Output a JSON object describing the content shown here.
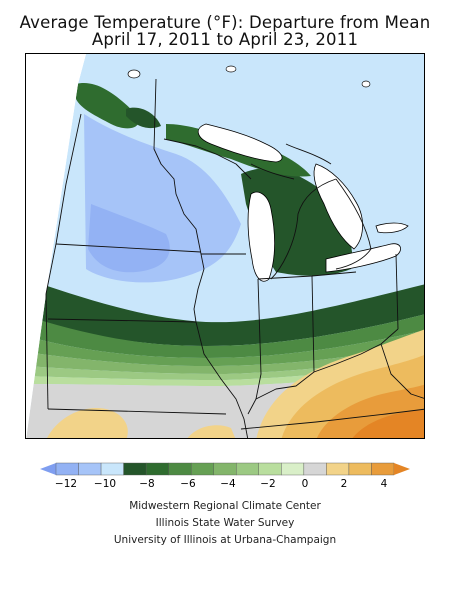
{
  "title": {
    "line1": "Average Temperature (°F): Departure from Mean",
    "line2": "April 17, 2011 to April 23, 2011"
  },
  "legend": {
    "tick_labels": [
      "−12",
      "−10",
      "−8",
      "−6",
      "−4",
      "−2",
      "0",
      "2",
      "4"
    ],
    "colors": {
      "below_min": "#7f9ef0",
      "neg12_neg11": "#93b2f4",
      "neg11_neg10": "#a6c4f8",
      "neg10_neg9": "#c9e6fb",
      "neg9_neg8": "#24552a",
      "neg8_neg7": "#2f6c2f",
      "neg7_neg6": "#4d8a43",
      "neg6_neg5": "#66a054",
      "neg5_neg4": "#83b56b",
      "neg4_neg3": "#9cc983",
      "neg3_neg2": "#b9de9e",
      "neg2_neg1": "#d9efc8",
      "neg1_pos1": "#d6d6d6",
      "pos1_pos2": "#f2d389",
      "pos2_pos3": "#edbb5e",
      "pos3_pos4": "#e89c3b",
      "above_max": "#e48525"
    }
  },
  "credits": {
    "line1": "Midwestern Regional Climate Center",
    "line2": "Illinois State Water Survey",
    "line3": "University of Illinois at Urbana-Champaign"
  }
}
